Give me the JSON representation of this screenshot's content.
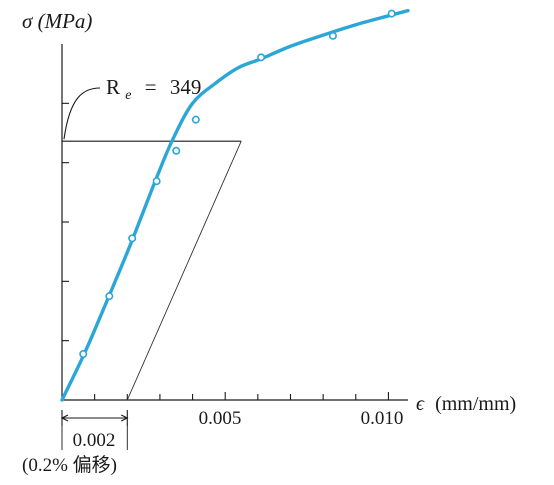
{
  "chart_data": {
    "type": "line",
    "ylabel": "σ (MPa)",
    "xlabel_symbol": "ϵ",
    "xlabel_unit": "(mm/mm)",
    "x_tick_labels": [
      "0.005",
      "0.010"
    ],
    "xlim": [
      0,
      0.0106
    ],
    "ylim": [
      0,
      480
    ],
    "y_ticks": [
      80,
      160,
      240,
      320,
      400
    ],
    "offset_strain": 0.002,
    "offset_label": "0.002",
    "offset_note": "(0.2% 偏移)",
    "yield_annotation": {
      "symbol": "R",
      "subscript": "e",
      "equals": "=",
      "value": 349
    },
    "series": [
      {
        "curve_x": [
          0,
          0.0007,
          0.0014,
          0.0021,
          0.0029,
          0.0034,
          0.004,
          0.0047,
          0.0054,
          0.0061,
          0.007,
          0.008,
          0.009,
          0.01,
          0.0106
        ],
        "curve_y": [
          0,
          64,
          136,
          210,
          300,
          352,
          400,
          427,
          448,
          460,
          477,
          492,
          506,
          518,
          525
        ],
        "points_x": [
          0.00065,
          0.00145,
          0.00215,
          0.0029,
          0.0035,
          0.0041,
          0.0061,
          0.0083,
          0.0101
        ],
        "points_y": [
          62,
          140,
          218,
          295,
          336,
          378,
          462,
          491,
          521
        ]
      }
    ],
    "colors": {
      "curve": "#2aa7d6",
      "text": "#1a1a1a"
    }
  }
}
